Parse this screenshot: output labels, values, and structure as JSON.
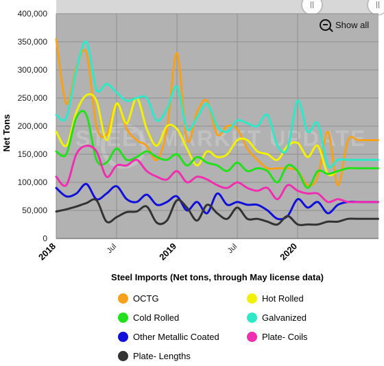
{
  "chart_data": {
    "type": "line",
    "title": "",
    "xlabel": "Steel Imports (Net tons, through May license data)",
    "ylabel": "Net Tons",
    "ylim": [
      0,
      400000
    ],
    "yticks": [
      "0",
      "50,000",
      "100,000",
      "150,000",
      "200,000",
      "250,000",
      "300,000",
      "350,000",
      "400,000"
    ],
    "xrange": [
      2018.0,
      2020.67
    ],
    "xticks": [
      {
        "label": "2018",
        "x": 2018.0,
        "major": true
      },
      {
        "label": "Jul",
        "x": 2018.5,
        "major": false
      },
      {
        "label": "2019",
        "x": 2019.0,
        "major": true
      },
      {
        "label": "Jul",
        "x": 2019.5,
        "major": false
      },
      {
        "label": "2020",
        "x": 2020.0,
        "major": true
      }
    ],
    "grid": true,
    "legend_position": "bottom",
    "watermark": "STEEL MARKET UPDATE",
    "show_all_label": "Show all",
    "x": [
      2018.0,
      2018.0833,
      2018.1667,
      2018.25,
      2018.3333,
      2018.4167,
      2018.5,
      2018.5833,
      2018.6667,
      2018.75,
      2018.8333,
      2018.9167,
      2019.0,
      2019.0833,
      2019.1667,
      2019.25,
      2019.3333,
      2019.4167,
      2019.5,
      2019.5833,
      2019.6667,
      2019.75,
      2019.8333,
      2019.9167,
      2020.0,
      2020.0833,
      2020.1667,
      2020.25,
      2020.3333,
      2020.4167,
      2020.5,
      2020.5833,
      2020.6667
    ],
    "series": [
      {
        "name": "OCTG",
        "color": "#f5a11c",
        "values": [
          355000,
          240000,
          305000,
          330000,
          200000,
          185000,
          240000,
          195000,
          175000,
          165000,
          140000,
          195000,
          330000,
          175000,
          225000,
          245000,
          185000,
          200000,
          195000,
          160000,
          140000,
          125000,
          125000,
          125000,
          120000,
          95000,
          110000,
          190000,
          95000,
          175000,
          175000,
          175000,
          175000
        ]
      },
      {
        "name": "Hot Rolled",
        "color": "#f2f200",
        "values": [
          190000,
          165000,
          225000,
          255000,
          245000,
          175000,
          240000,
          205000,
          250000,
          195000,
          165000,
          200000,
          195000,
          160000,
          130000,
          155000,
          145000,
          150000,
          175000,
          175000,
          155000,
          150000,
          140000,
          165000,
          170000,
          145000,
          165000,
          115000,
          120000,
          125000,
          125000,
          125000,
          125000
        ]
      },
      {
        "name": "Cold Rolled",
        "color": "#22e01c",
        "values": [
          155000,
          150000,
          215000,
          220000,
          140000,
          135000,
          160000,
          140000,
          145000,
          155000,
          145000,
          140000,
          150000,
          130000,
          145000,
          135000,
          130000,
          120000,
          135000,
          120000,
          125000,
          120000,
          100000,
          130000,
          120000,
          90000,
          120000,
          115000,
          120000,
          125000,
          125000,
          125000,
          125000
        ]
      },
      {
        "name": "Galvanized",
        "color": "#2ee8c8",
        "values": [
          220000,
          215000,
          300000,
          350000,
          265000,
          275000,
          260000,
          245000,
          250000,
          250000,
          210000,
          230000,
          270000,
          195000,
          215000,
          240000,
          200000,
          190000,
          210000,
          205000,
          200000,
          220000,
          165000,
          160000,
          245000,
          190000,
          205000,
          130000,
          140000,
          140000,
          140000,
          140000,
          140000
        ]
      },
      {
        "name": "Other Metallic Coated",
        "color": "#1010d8",
        "values": [
          90000,
          75000,
          80000,
          97000,
          70000,
          80000,
          93000,
          70000,
          65000,
          78000,
          60000,
          65000,
          75000,
          50000,
          65000,
          45000,
          80000,
          60000,
          65000,
          60000,
          60000,
          50000,
          35000,
          40000,
          70000,
          55000,
          65000,
          45000,
          60000,
          65000,
          65000,
          65000,
          65000
        ]
      },
      {
        "name": "Plate- Coils",
        "color": "#ef2eb0",
        "values": [
          110000,
          95000,
          150000,
          165000,
          155000,
          110000,
          130000,
          130000,
          140000,
          120000,
          110000,
          105000,
          120000,
          100000,
          110000,
          105000,
          95000,
          90000,
          100000,
          90000,
          85000,
          90000,
          70000,
          95000,
          85000,
          80000,
          80000,
          65000,
          70000,
          65000,
          65000,
          65000,
          65000
        ]
      },
      {
        "name": "Plate- Lengths",
        "color": "#333333",
        "values": [
          48000,
          52000,
          57000,
          63000,
          68000,
          30000,
          38000,
          47000,
          48000,
          57000,
          28000,
          32000,
          68000,
          55000,
          32000,
          60000,
          45000,
          35000,
          55000,
          35000,
          35000,
          30000,
          25000,
          40000,
          25000,
          25000,
          25000,
          30000,
          30000,
          35000,
          35000,
          35000,
          35000
        ]
      }
    ]
  },
  "legend_items": [
    {
      "name": "OCTG",
      "color": "#f5a11c"
    },
    {
      "name": "Hot Rolled",
      "color": "#f2f200"
    },
    {
      "name": "Cold Rolled",
      "color": "#22e01c"
    },
    {
      "name": "Galvanized",
      "color": "#2ee8c8"
    },
    {
      "name": "Other Metallic Coated",
      "color": "#1010d8"
    },
    {
      "name": "Plate- Coils",
      "color": "#ef2eb0"
    },
    {
      "name": "Plate- Lengths",
      "color": "#333333"
    }
  ]
}
